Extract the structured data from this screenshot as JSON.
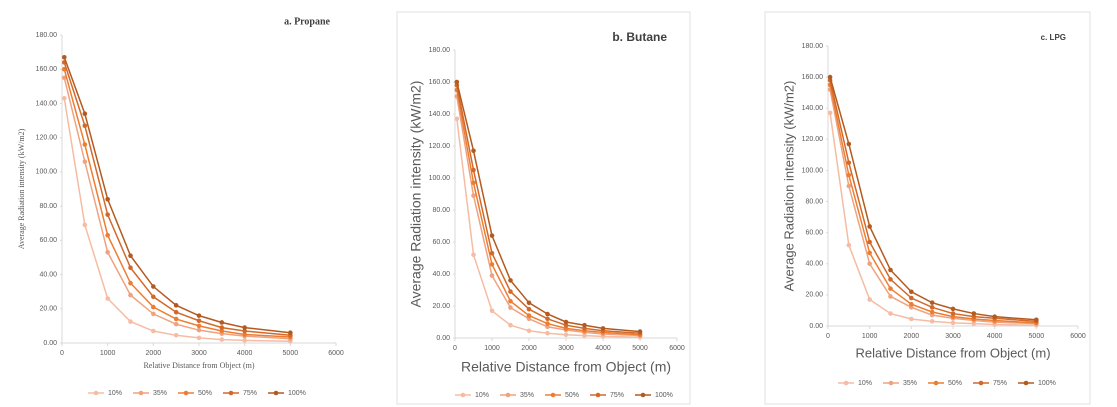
{
  "chart_data": [
    {
      "type": "line",
      "title": "a. Propane",
      "xlabel": "Relative Distance from Object (m)",
      "ylabel": "Average Radiation intensity (kW/m2)",
      "x": [
        50,
        500,
        1000,
        1500,
        2000,
        2500,
        3000,
        3500,
        4000,
        5000
      ],
      "xlim": [
        0,
        6000
      ],
      "xticks": [
        0,
        1000,
        2000,
        3000,
        4000,
        5000,
        6000
      ],
      "ylim": [
        0,
        180
      ],
      "yticks": [
        {
          "value": 0,
          "label": "0.00"
        },
        {
          "value": 20,
          "label": "20.00"
        },
        {
          "value": 40,
          "label": "40.00"
        },
        {
          "value": 60,
          "label": "60.00"
        },
        {
          "value": 80,
          "label": "80.00"
        },
        {
          "value": 100,
          "label": "100.00"
        },
        {
          "value": 120,
          "label": "120.00"
        },
        {
          "value": 140,
          "label": "140.00"
        },
        {
          "value": 160,
          "label": "160.00"
        },
        {
          "value": 180,
          "label": "180.00"
        }
      ],
      "series": [
        {
          "name": "10%",
          "color": "#f5bca3",
          "values": [
            143,
            69,
            26,
            12.5,
            7,
            4.5,
            3,
            2,
            1.5,
            1
          ]
        },
        {
          "name": "35%",
          "color": "#efa27f",
          "values": [
            155,
            106,
            53,
            28,
            17,
            11,
            7.5,
            5.5,
            4,
            2.5
          ]
        },
        {
          "name": "50%",
          "color": "#ed7d31",
          "values": [
            160,
            116,
            63,
            35,
            21,
            14,
            10,
            7,
            5,
            3.5
          ]
        },
        {
          "name": "75%",
          "color": "#d2692a",
          "values": [
            164,
            127,
            75,
            44,
            27,
            18,
            13,
            9,
            7,
            4.5
          ]
        },
        {
          "name": "100%",
          "color": "#b35a1f",
          "values": [
            167,
            134,
            84,
            51,
            33,
            22,
            16,
            12,
            9,
            6
          ]
        }
      ]
    },
    {
      "type": "line",
      "title": "b. Butane",
      "xlabel": "Relative Distance from Object (m)",
      "ylabel": "Average Radiation intensity (kW/m2)",
      "x": [
        50,
        500,
        1000,
        1500,
        2000,
        2500,
        3000,
        3500,
        4000,
        5000
      ],
      "xlim": [
        0,
        6000
      ],
      "xticks": [
        0,
        1000,
        2000,
        3000,
        4000,
        5000,
        6000
      ],
      "ylim": [
        0,
        180
      ],
      "yticks": [
        {
          "value": 0,
          "label": "0.00"
        },
        {
          "value": 20,
          "label": "20.00"
        },
        {
          "value": 40,
          "label": "40.00"
        },
        {
          "value": 60,
          "label": "60.00"
        },
        {
          "value": 80,
          "label": "80.00"
        },
        {
          "value": 100,
          "label": "100.00"
        },
        {
          "value": 120,
          "label": "120.00"
        },
        {
          "value": 140,
          "label": "140.00"
        },
        {
          "value": 160,
          "label": "160.00"
        },
        {
          "value": 180,
          "label": "180.00"
        }
      ],
      "series": [
        {
          "name": "10%",
          "color": "#f5bca3",
          "values": [
            137,
            52,
            17,
            8,
            4.5,
            3,
            2,
            1.5,
            1,
            0.5
          ]
        },
        {
          "name": "35%",
          "color": "#efa27f",
          "values": [
            151,
            89,
            39,
            19,
            12,
            7,
            5,
            3.5,
            2.5,
            1.5
          ]
        },
        {
          "name": "50%",
          "color": "#ed7d31",
          "values": [
            155,
            97,
            46,
            23,
            14,
            9,
            6,
            4.5,
            3.5,
            2
          ]
        },
        {
          "name": "75%",
          "color": "#d2692a",
          "values": [
            158,
            105,
            53,
            29,
            18,
            12,
            8,
            6,
            4.5,
            3
          ]
        },
        {
          "name": "100%",
          "color": "#b35a1f",
          "values": [
            160,
            117,
            64,
            36,
            22,
            15,
            10,
            8,
            6,
            4
          ]
        }
      ]
    },
    {
      "type": "line",
      "title": "c. LPG",
      "xlabel": "Relative Distance from Object (m)",
      "ylabel": "Average Radiation intensity (kW/m2)",
      "x": [
        50,
        500,
        1000,
        1500,
        2000,
        2500,
        3000,
        3500,
        4000,
        5000
      ],
      "xlim": [
        0,
        6000
      ],
      "xticks": [
        0,
        1000,
        2000,
        3000,
        4000,
        5000,
        6000
      ],
      "ylim": [
        0,
        180
      ],
      "yticks": [
        {
          "value": 0,
          "label": "0.00"
        },
        {
          "value": 20,
          "label": "20.00"
        },
        {
          "value": 40,
          "label": "40.00"
        },
        {
          "value": 60,
          "label": "60.00"
        },
        {
          "value": 80,
          "label": "80.00"
        },
        {
          "value": 100,
          "label": "100.00"
        },
        {
          "value": 120,
          "label": "120.00"
        },
        {
          "value": 140,
          "label": "140.00"
        },
        {
          "value": 160,
          "label": "160.00"
        },
        {
          "value": 180,
          "label": "180.00"
        }
      ],
      "series": [
        {
          "name": "10%",
          "color": "#f5bca3",
          "values": [
            137,
            52,
            17,
            8,
            4.5,
            3,
            2,
            1.5,
            1,
            0.5
          ]
        },
        {
          "name": "35%",
          "color": "#efa27f",
          "values": [
            152,
            90,
            40,
            19,
            12,
            7,
            5,
            3.5,
            2.5,
            1.5
          ]
        },
        {
          "name": "50%",
          "color": "#ed7d31",
          "values": [
            155,
            97,
            47,
            24,
            14,
            9,
            6,
            4.5,
            3.5,
            2
          ]
        },
        {
          "name": "75%",
          "color": "#d2692a",
          "values": [
            158,
            105,
            54,
            30,
            18,
            12,
            8,
            6,
            5,
            3
          ]
        },
        {
          "name": "100%",
          "color": "#b35a1f",
          "values": [
            160,
            117,
            64,
            36,
            22,
            15,
            11,
            8,
            6,
            4
          ]
        }
      ]
    }
  ]
}
